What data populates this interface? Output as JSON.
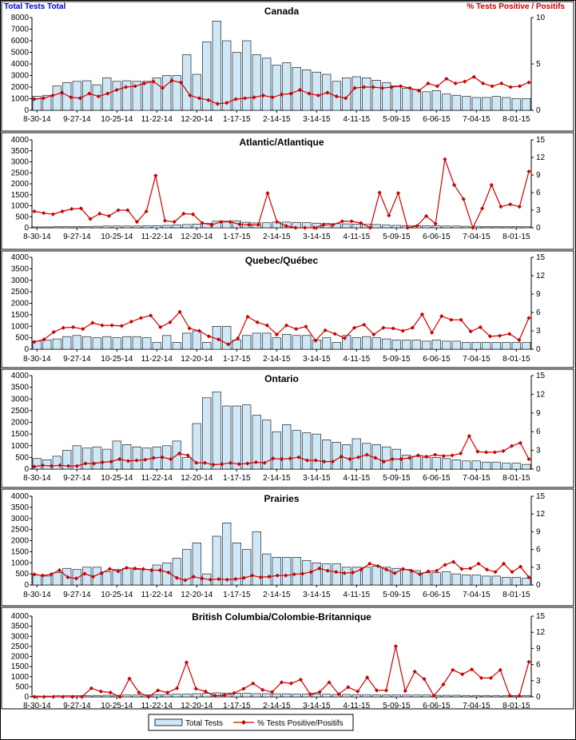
{
  "header": {
    "left": "Total Tests Total",
    "right": "% Tests Positive / Positifs"
  },
  "legend": {
    "bars": "Total Tests",
    "line": "% Tests Positive/Positifs"
  },
  "colors": {
    "bar_fill": "#cfe8f8",
    "bar_stroke": "#000000",
    "line": "#cc0000",
    "panel_border": "#000000"
  },
  "x_tick_labels": [
    "8-30-14",
    "9-27-14",
    "10-25-14",
    "11-22-14",
    "12-20-14",
    "1-17-15",
    "2-14-15",
    "3-14-15",
    "4-11-15",
    "5-09-15",
    "6-06-15",
    "7-04-15",
    "8-01-15"
  ],
  "chart_data": [
    {
      "type": "bar",
      "title": "Canada",
      "ylim": [
        0,
        8000
      ],
      "y_ticks": [
        0,
        1000,
        2000,
        3000,
        4000,
        5000,
        6000,
        7000,
        8000
      ],
      "y2lim": [
        0,
        10
      ],
      "y2_ticks": [
        0,
        5,
        10
      ],
      "series": [
        {
          "name": "Total Tests",
          "values": [
            1200,
            1300,
            2100,
            2400,
            2500,
            2550,
            2200,
            2800,
            2500,
            2550,
            2500,
            2500,
            2800,
            3000,
            3000,
            4800,
            3100,
            5900,
            7700,
            6000,
            5000,
            6000,
            4800,
            4500,
            3900,
            4100,
            3700,
            3500,
            3300,
            3100,
            2500,
            2800,
            2900,
            2800,
            2600,
            2400,
            2100,
            1900,
            1800,
            1600,
            1700,
            1400,
            1300,
            1200,
            1100,
            1100,
            1200,
            1100,
            1000,
            1000
          ]
        },
        {
          "name": "% Tests Positive/Positifs",
          "values": [
            1.2,
            1.3,
            1.6,
            1.9,
            1.4,
            1.3,
            1.8,
            1.5,
            1.8,
            2.2,
            2.5,
            2.6,
            2.9,
            3.1,
            2.4,
            3.2,
            3.0,
            1.6,
            1.3,
            1.1,
            0.7,
            0.8,
            1.2,
            1.3,
            1.4,
            1.6,
            1.4,
            1.7,
            1.8,
            2.2,
            1.8,
            1.6,
            1.9,
            1.5,
            1.3,
            2.4,
            2.5,
            2.5,
            2.4,
            2.5,
            2.6,
            2.4,
            2.1,
            2.9,
            2.6,
            3.4,
            2.9,
            3.1,
            3.6,
            2.9,
            2.6,
            2.9,
            2.5,
            2.6,
            3.0
          ]
        }
      ]
    },
    {
      "type": "bar",
      "title": "Atlantic/Atlantique",
      "ylim": [
        0,
        4000
      ],
      "y_ticks": [
        0,
        500,
        1000,
        1500,
        2000,
        2500,
        3000,
        3500,
        4000
      ],
      "y2lim": [
        0,
        15
      ],
      "y2_ticks": [
        0,
        3,
        6,
        9,
        12,
        15
      ],
      "series": [
        {
          "name": "Total Tests",
          "values": [
            40,
            40,
            50,
            50,
            60,
            60,
            70,
            80,
            80,
            80,
            80,
            90,
            100,
            110,
            130,
            150,
            170,
            200,
            300,
            300,
            320,
            250,
            220,
            230,
            260,
            260,
            240,
            230,
            210,
            200,
            190,
            180,
            170,
            160,
            150,
            120,
            110,
            100,
            100,
            90,
            90,
            80,
            80,
            70,
            70,
            60,
            60,
            60,
            60,
            50
          ]
        },
        {
          "name": "% Tests Positive/Positifs",
          "values": [
            2.8,
            2.5,
            2.3,
            2.8,
            3.2,
            3.3,
            1.5,
            2.4,
            2.0,
            3.0,
            3.0,
            1.0,
            2.8,
            8.9,
            1.2,
            1.0,
            2.4,
            2.3,
            0.8,
            0.5,
            1.0,
            1.0,
            0.6,
            0.5,
            0.5,
            5.9,
            1.0,
            0.3,
            0.0,
            0.0,
            0.0,
            0.5,
            0.5,
            1.1,
            1.1,
            0.8,
            0.0,
            6.0,
            2.1,
            5.9,
            0.0,
            0.3,
            2.0,
            0.7,
            11.7,
            7.3,
            4.9,
            0.0,
            3.3,
            7.3,
            3.6,
            4.0,
            3.6,
            9.6
          ]
        }
      ]
    },
    {
      "type": "bar",
      "title": "Quebec/Québec",
      "ylim": [
        0,
        4000
      ],
      "y_ticks": [
        0,
        500,
        1000,
        1500,
        2000,
        2500,
        3000,
        3500,
        4000
      ],
      "y2lim": [
        0,
        15
      ],
      "y2_ticks": [
        0,
        3,
        6,
        9,
        12,
        15
      ],
      "series": [
        {
          "name": "Total Tests",
          "values": [
            350,
            400,
            450,
            550,
            600,
            550,
            500,
            550,
            500,
            550,
            550,
            500,
            300,
            600,
            300,
            700,
            800,
            300,
            1000,
            1000,
            400,
            600,
            700,
            700,
            500,
            650,
            600,
            600,
            400,
            500,
            300,
            600,
            500,
            550,
            500,
            450,
            400,
            400,
            400,
            350,
            400,
            350,
            350,
            300,
            300,
            300,
            300,
            300,
            300,
            300
          ]
        },
        {
          "name": "% Tests Positive/Positifs",
          "values": [
            1.2,
            1.6,
            2.8,
            3.5,
            3.6,
            3.3,
            4.3,
            3.9,
            3.9,
            3.8,
            4.5,
            5.1,
            5.5,
            3.6,
            4.4,
            6.1,
            3.4,
            3.0,
            2.1,
            1.6,
            0.8,
            1.8,
            5.3,
            4.4,
            3.9,
            2.4,
            3.9,
            3.3,
            3.7,
            1.4,
            3.1,
            2.5,
            1.8,
            3.5,
            4.0,
            2.4,
            3.5,
            3.4,
            3.0,
            3.5,
            5.7,
            2.7,
            5.4,
            4.8,
            4.8,
            2.9,
            3.6,
            2.1,
            2.2,
            2.5,
            1.5,
            5.1
          ]
        }
      ]
    },
    {
      "type": "bar",
      "title": "Ontario",
      "ylim": [
        0,
        4000
      ],
      "y_ticks": [
        0,
        500,
        1000,
        1500,
        2000,
        2500,
        3000,
        3500,
        4000
      ],
      "y2lim": [
        0,
        15
      ],
      "y2_ticks": [
        0,
        3,
        6,
        9,
        12,
        15
      ],
      "series": [
        {
          "name": "Total Tests",
          "values": [
            450,
            400,
            550,
            800,
            1000,
            900,
            950,
            850,
            1200,
            1050,
            950,
            900,
            950,
            1000,
            1200,
            500,
            1950,
            3050,
            3300,
            2700,
            2700,
            2750,
            2300,
            2100,
            1600,
            1900,
            1650,
            1550,
            1500,
            1250,
            1150,
            1050,
            1300,
            1100,
            1050,
            950,
            850,
            600,
            550,
            500,
            500,
            450,
            400,
            350,
            350,
            300,
            300,
            250,
            250,
            200
          ]
        },
        {
          "name": "% Tests Positive/Positifs",
          "values": [
            0.4,
            0.6,
            0.5,
            0.6,
            0.5,
            0.5,
            0.9,
            0.9,
            1.1,
            1.2,
            1.6,
            1.3,
            1.4,
            1.5,
            1.8,
            1.9,
            1.6,
            2.5,
            2.2,
            1.0,
            1.0,
            0.7,
            0.8,
            1.0,
            0.8,
            0.9,
            1.1,
            1.0,
            1.7,
            1.6,
            1.7,
            1.9,
            1.4,
            1.4,
            1.2,
            1.2,
            2.0,
            1.6,
            1.9,
            2.3,
            1.8,
            1.2,
            1.6,
            1.6,
            1.8,
            2.2,
            2.0,
            2.3,
            2.1,
            2.2,
            2.5,
            5.3,
            2.8,
            2.7,
            2.7,
            2.9,
            3.7,
            4.2,
            1.6
          ]
        }
      ]
    },
    {
      "type": "bar",
      "title": "Prairies",
      "ylim": [
        0,
        4000
      ],
      "y_ticks": [
        0,
        500,
        1000,
        1500,
        2000,
        2500,
        3000,
        3500,
        4000
      ],
      "y2lim": [
        0,
        15
      ],
      "y2_ticks": [
        0,
        3,
        6,
        9,
        12,
        15
      ],
      "series": [
        {
          "name": "Total Tests",
          "values": [
            450,
            400,
            550,
            750,
            700,
            800,
            800,
            600,
            700,
            750,
            700,
            700,
            900,
            1000,
            1200,
            1600,
            1900,
            500,
            2200,
            2800,
            1900,
            1600,
            2400,
            1400,
            1250,
            1250,
            1250,
            1100,
            1000,
            950,
            950,
            800,
            800,
            800,
            850,
            800,
            750,
            700,
            650,
            550,
            550,
            600,
            500,
            450,
            450,
            400,
            400,
            350,
            350,
            300
          ]
        },
        {
          "name": "% Tests Positive/Positifs",
          "values": [
            1.8,
            1.6,
            1.8,
            2.5,
            1.3,
            1.1,
            1.9,
            1.4,
            2.0,
            2.7,
            2.3,
            2.9,
            2.8,
            2.7,
            2.5,
            2.5,
            2.1,
            1.2,
            0.8,
            1.4,
            1.1,
            0.9,
            1.0,
            0.9,
            1.0,
            1.2,
            1.6,
            1.3,
            1.4,
            1.6,
            1.6,
            1.8,
            1.9,
            2.2,
            2.8,
            2.4,
            2.2,
            2.0,
            2.1,
            2.6,
            3.6,
            3.2,
            2.6,
            2.0,
            2.7,
            2.4,
            1.8,
            2.3,
            2.4,
            3.4,
            3.9,
            2.7,
            2.8,
            3.6,
            2.6,
            2.2,
            3.6,
            2.2,
            3.1,
            1.3
          ]
        }
      ]
    },
    {
      "type": "bar",
      "title": "British Columbia/Colombie-Britannique",
      "ylim": [
        0,
        4000
      ],
      "y_ticks": [
        0,
        500,
        1000,
        1500,
        2000,
        2500,
        3000,
        3500,
        4000
      ],
      "y2lim": [
        0,
        15
      ],
      "y2_ticks": [
        0,
        3,
        6,
        9,
        12,
        15
      ],
      "series": [
        {
          "name": "Total Tests",
          "values": [
            40,
            40,
            50,
            50,
            60,
            60,
            70,
            80,
            80,
            90,
            90,
            100,
            110,
            120,
            130,
            140,
            160,
            180,
            200,
            190,
            180,
            170,
            160,
            160,
            150,
            150,
            140,
            140,
            130,
            130,
            120,
            120,
            110,
            110,
            100,
            100,
            100,
            90,
            90,
            90,
            80,
            80,
            80,
            70,
            70,
            70,
            60,
            60,
            60,
            60
          ]
        },
        {
          "name": "% Tests Positive/Positifs",
          "values": [
            0.0,
            0.0,
            0.0,
            0.0,
            0.0,
            0.0,
            1.6,
            1.0,
            0.8,
            0.0,
            3.4,
            0.8,
            0.0,
            1.2,
            0.8,
            1.6,
            6.4,
            1.5,
            1.0,
            0.2,
            0.3,
            0.7,
            1.5,
            2.5,
            1.3,
            0.9,
            2.7,
            2.5,
            3.2,
            0.5,
            0.9,
            2.7,
            0.5,
            1.8,
            1.0,
            3.6,
            1.2,
            1.2,
            9.4,
            1.1,
            4.7,
            3.3,
            0.2,
            2.3,
            5.0,
            4.2,
            5.1,
            3.5,
            3.5,
            5.0,
            0.2,
            0.2,
            6.5
          ]
        }
      ]
    }
  ]
}
